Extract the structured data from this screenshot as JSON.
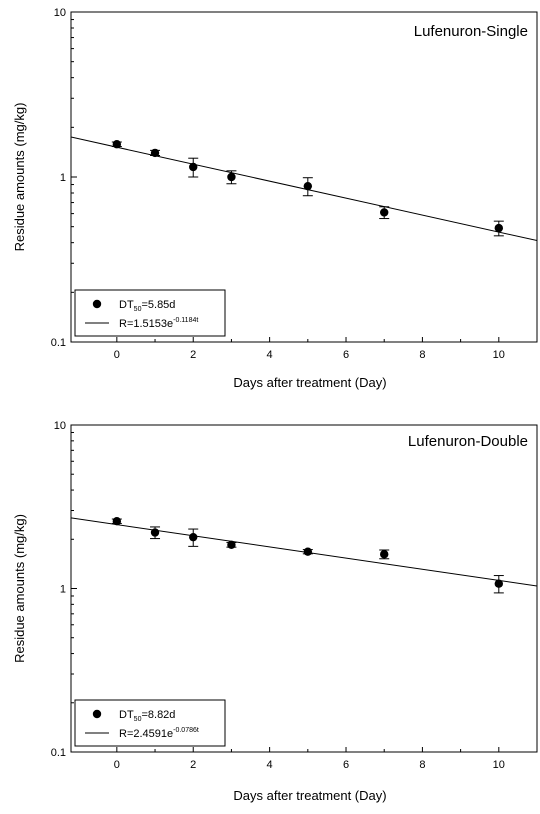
{
  "chart_data": [
    {
      "type": "scatter",
      "title": "Lufenuron-Single",
      "xlabel": "Days after treatment (Day)",
      "ylabel": "Residue amounts (mg/kg)",
      "xlim": [
        -1.2,
        11
      ],
      "ylim": [
        0.1,
        10
      ],
      "yscale": "log",
      "x_ticks": [
        0,
        2,
        4,
        6,
        8,
        10
      ],
      "y_ticks": [
        0.1,
        1,
        10
      ],
      "y_tick_labels": [
        "0.1",
        "1",
        "10"
      ],
      "grid": false,
      "legend_position": "bottom-left",
      "series": [
        {
          "kind": "points",
          "x": [
            0,
            1,
            2,
            3,
            5,
            7,
            10
          ],
          "y": [
            1.58,
            1.4,
            1.15,
            1.0,
            0.88,
            0.61,
            0.49
          ],
          "err": [
            0.05,
            0.05,
            0.15,
            0.09,
            0.11,
            0.05,
            0.05
          ]
        },
        {
          "kind": "fit",
          "A": 1.5153,
          "k": 0.1184
        }
      ],
      "legend": {
        "dt_prefix": "DT",
        "dt_sub": "50",
        "dt_value": "=5.85d",
        "eq_prefix": "R=1.5153e",
        "eq_exp": "-0.1184t"
      }
    },
    {
      "type": "scatter",
      "title": "Lufenuron-Double",
      "xlabel": "Days after treatment (Day)",
      "ylabel": "Residue amounts (mg/kg)",
      "xlim": [
        -1.2,
        11
      ],
      "ylim": [
        0.1,
        10
      ],
      "yscale": "log",
      "x_ticks": [
        0,
        2,
        4,
        6,
        8,
        10
      ],
      "y_ticks": [
        0.1,
        1,
        10
      ],
      "y_tick_labels": [
        "0.1",
        "1",
        "10"
      ],
      "grid": false,
      "legend_position": "bottom-left",
      "series": [
        {
          "kind": "points",
          "x": [
            0,
            1,
            2,
            3,
            5,
            7,
            10
          ],
          "y": [
            2.58,
            2.2,
            2.06,
            1.85,
            1.68,
            1.62,
            1.07
          ],
          "err": [
            0.08,
            0.18,
            0.25,
            0.06,
            0.05,
            0.1,
            0.13
          ]
        },
        {
          "kind": "fit",
          "A": 2.4591,
          "k": 0.0786
        }
      ],
      "legend": {
        "dt_prefix": "DT",
        "dt_sub": "50",
        "dt_value": "=8.82d",
        "eq_prefix": "R=2.4591e",
        "eq_exp": "-0.0786t"
      }
    }
  ]
}
